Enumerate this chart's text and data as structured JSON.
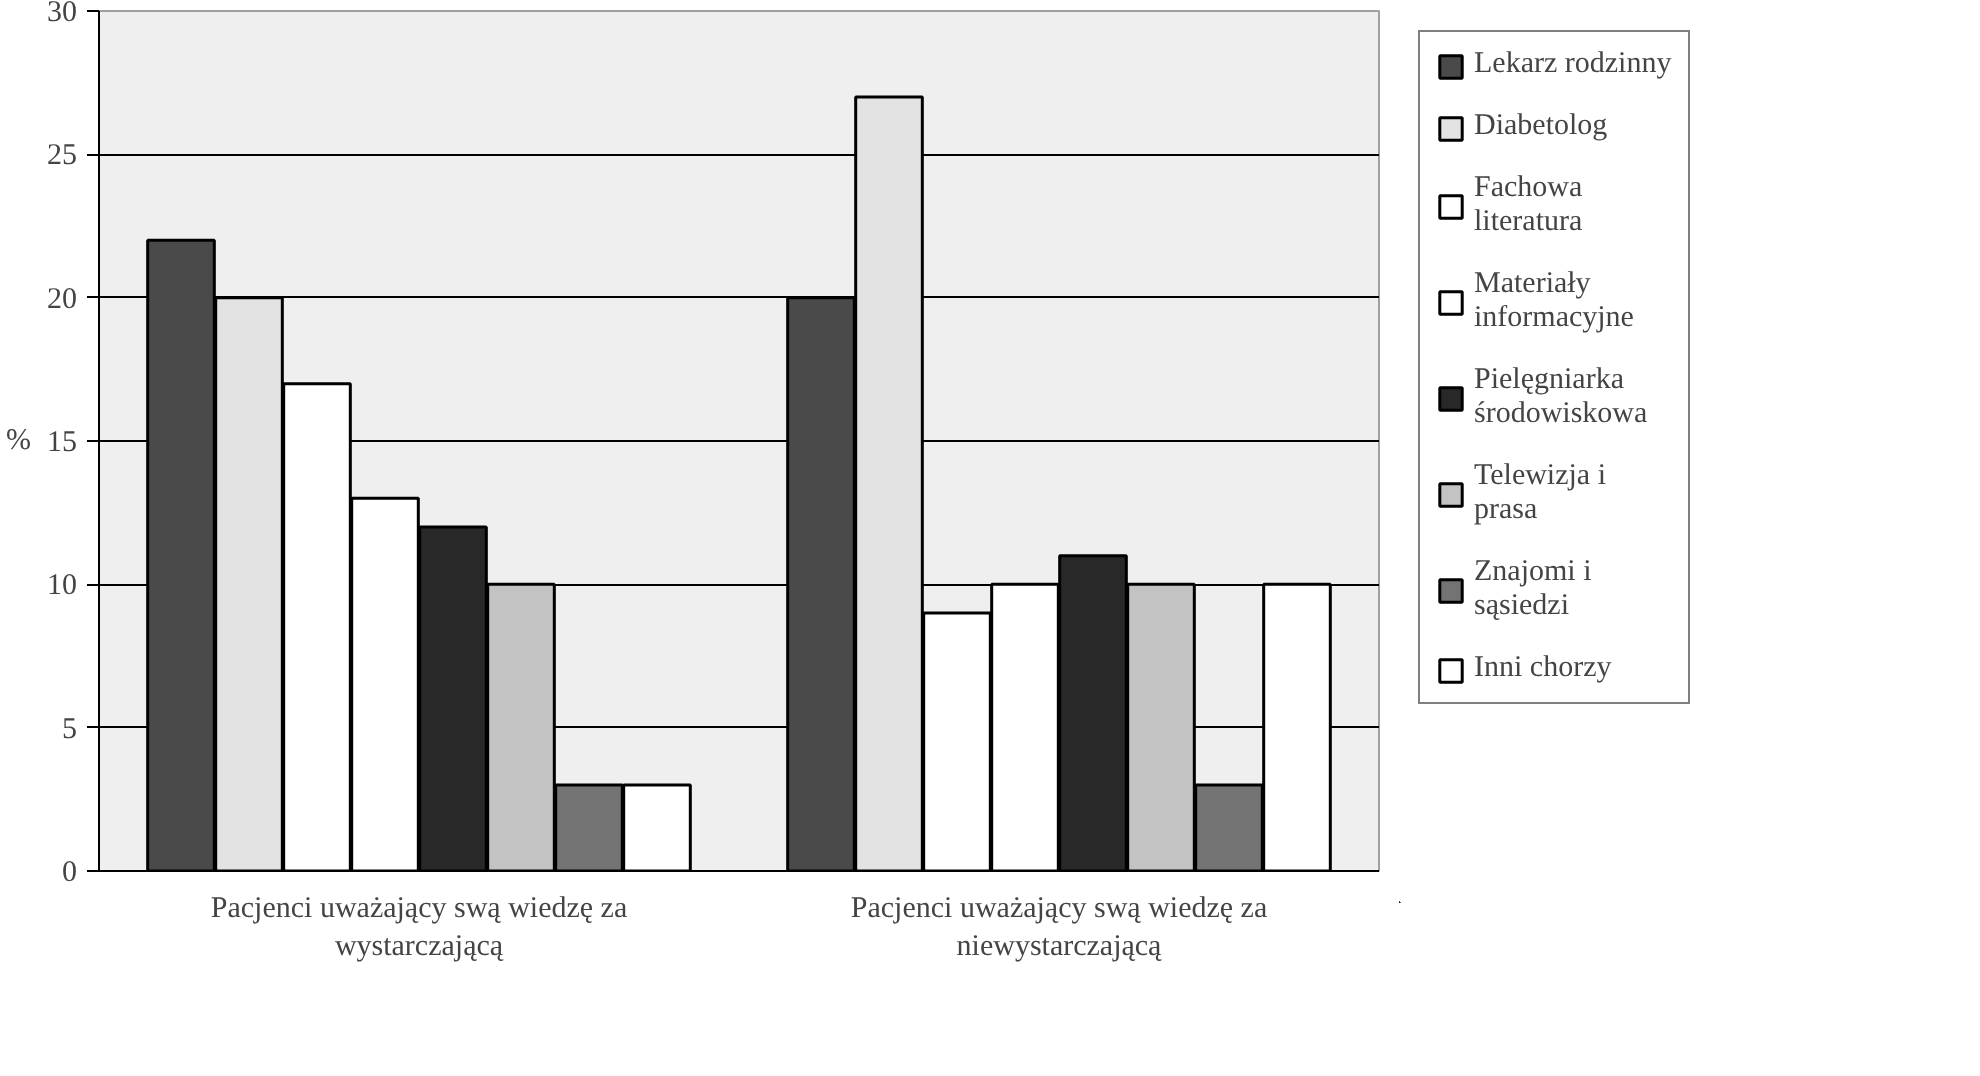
{
  "chart_data": {
    "type": "bar",
    "ylabel": "%",
    "categories": [
      "Pacjenci uważający swą wiedzę za wystarczającą",
      "Pacjenci uważający swą wiedzę za niewystarczającą"
    ],
    "series": [
      {
        "name": "Lekarz rodzinny",
        "color": "#4a4a4a",
        "values": [
          22,
          20
        ]
      },
      {
        "name": "Diabetolog",
        "color": "#e3e3e3",
        "values": [
          20,
          27
        ]
      },
      {
        "name": "Fachowa literatura",
        "color": "#ffffff",
        "values": [
          17,
          9
        ]
      },
      {
        "name": "Materiały informacyjne",
        "color": "#ffffff",
        "values": [
          13,
          10
        ]
      },
      {
        "name": "Pielęgniarka środowiskowa",
        "color": "#282828",
        "values": [
          12,
          11
        ]
      },
      {
        "name": "Telewizja i prasa",
        "color": "#c3c3c3",
        "values": [
          10,
          10
        ]
      },
      {
        "name": "Znajomi i sąsiedzi",
        "color": "#737373",
        "values": [
          3,
          3
        ]
      },
      {
        "name": "Inni chorzy",
        "color": "#ffffff",
        "values": [
          3,
          10
        ]
      }
    ],
    "ylim": [
      0,
      30
    ],
    "yticks": [
      0,
      5,
      10,
      15,
      20,
      25,
      30
    ],
    "grid": "y",
    "legend": "right"
  }
}
